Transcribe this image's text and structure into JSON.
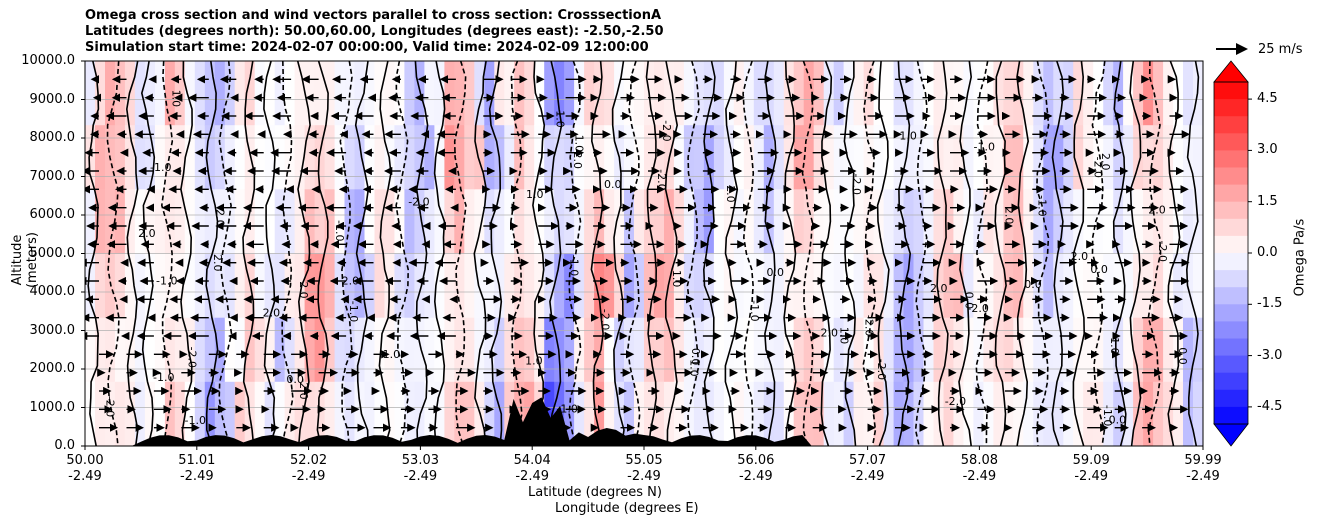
{
  "title": {
    "line1": "Omega cross section and wind vectors parallel to cross section: CrosssectionA",
    "line2": "Latitudes (degrees north): 50.00,60.00, Longitudes (degrees east): -2.50,-2.50",
    "line3": "Simulation start time: 2024-02-07 00:00:00, Valid time: 2024-02-09 12:00:00"
  },
  "chart_data": {
    "type": "heatmap",
    "title": "Omega cross section and wind vectors parallel to cross section: CrosssectionA",
    "xlabel": "Latitude (degrees N)",
    "xlabel2": "Longitude (degrees E)",
    "ylabel": "Altitude (meters)",
    "ylim": [
      0,
      10000
    ],
    "yticks": [
      "0.0",
      "1000.0",
      "2000.0",
      "3000.0",
      "4000.0",
      "5000.0",
      "6000.0",
      "7000.0",
      "8000.0",
      "9000.0",
      "10000.0"
    ],
    "xticks": [
      {
        "lat": "50.00",
        "lon": "-2.49"
      },
      {
        "lat": "51.01",
        "lon": "-2.49"
      },
      {
        "lat": "52.02",
        "lon": "-2.49"
      },
      {
        "lat": "53.03",
        "lon": "-2.49"
      },
      {
        "lat": "54.04",
        "lon": "-2.49"
      },
      {
        "lat": "55.05",
        "lon": "-2.49"
      },
      {
        "lat": "56.06",
        "lon": "-2.49"
      },
      {
        "lat": "57.07",
        "lon": "-2.49"
      },
      {
        "lat": "58.08",
        "lon": "-2.49"
      },
      {
        "lat": "59.09",
        "lon": "-2.49"
      },
      {
        "lat": "59.99",
        "lon": "-2.49"
      }
    ],
    "colorbar": {
      "label": "Omega Pa/s",
      "range": [
        -5,
        5
      ],
      "ticks": [
        "4.5",
        "3.0",
        "1.5",
        "0.0",
        "-1.5",
        "-3.0",
        "-4.5"
      ]
    },
    "vector_key": {
      "label": "25 m/s",
      "speed": 25
    },
    "contour_labels": [
      "0.0",
      "1.0",
      "-1.0",
      "2.0",
      "-2.0"
    ],
    "grid": true
  },
  "colors": {
    "positive": "#ff0000",
    "negative": "#0000ff",
    "neutral": "#ffffff",
    "contour": "#000000"
  }
}
